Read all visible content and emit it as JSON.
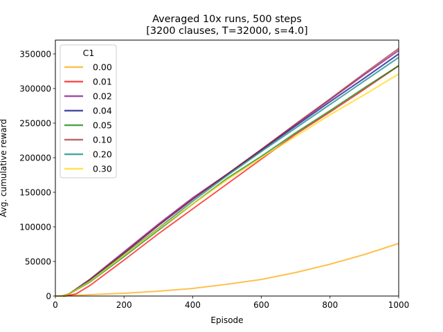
{
  "chart_data": {
    "type": "line",
    "title": "Averaged 10x runs, 500 steps",
    "subtitle": "[3200 clauses, T=32000, s=4.0]",
    "xlabel": "Episode",
    "ylabel": "Avg. cumulative reward",
    "xlim": [
      0,
      1000
    ],
    "ylim": [
      0,
      370000
    ],
    "x_ticks": [
      0,
      200,
      400,
      600,
      800,
      1000
    ],
    "y_ticks": [
      0,
      50000,
      100000,
      150000,
      200000,
      250000,
      300000,
      350000
    ],
    "grid": false,
    "legend": {
      "title": "C1",
      "placement": "upper left"
    },
    "series": [
      {
        "name": "0.00",
        "color": "#FFA500",
        "x": [
          0,
          100,
          200,
          300,
          400,
          500,
          600,
          700,
          800,
          900,
          1000
        ],
        "y": [
          0,
          2000,
          4000,
          7000,
          11000,
          17000,
          24000,
          34000,
          46000,
          60000,
          76000
        ]
      },
      {
        "name": "0.01",
        "color": "#FF0000",
        "x": [
          0,
          30,
          60,
          100,
          200,
          300,
          400,
          500,
          600,
          700,
          800,
          900,
          1000
        ],
        "y": [
          0,
          0,
          3000,
          15000,
          52000,
          90000,
          126000,
          162000,
          198000,
          234000,
          266000,
          299000,
          333000
        ]
      },
      {
        "name": "0.02",
        "color": "#800080",
        "x": [
          0,
          20,
          40,
          100,
          200,
          300,
          400,
          500,
          600,
          700,
          800,
          900,
          1000
        ],
        "y": [
          0,
          0,
          3000,
          24000,
          64000,
          104000,
          142000,
          176000,
          212000,
          248000,
          284000,
          320000,
          355000
        ]
      },
      {
        "name": "0.04",
        "color": "#000080",
        "x": [
          0,
          20,
          40,
          100,
          200,
          300,
          400,
          500,
          600,
          700,
          800,
          900,
          1000
        ],
        "y": [
          0,
          0,
          3000,
          23000,
          62000,
          102000,
          140000,
          176000,
          211000,
          246000,
          281000,
          315000,
          350000
        ]
      },
      {
        "name": "0.05",
        "color": "#008000",
        "x": [
          0,
          20,
          40,
          100,
          200,
          300,
          400,
          500,
          600,
          700,
          800,
          900,
          1000
        ],
        "y": [
          0,
          0,
          3000,
          20000,
          57000,
          95000,
          133000,
          170000,
          202000,
          236000,
          268000,
          301000,
          333000
        ]
      },
      {
        "name": "0.10",
        "color": "#A52A2A",
        "x": [
          0,
          20,
          40,
          100,
          200,
          300,
          400,
          500,
          600,
          700,
          800,
          900,
          1000
        ],
        "y": [
          0,
          0,
          3000,
          23000,
          62000,
          102000,
          140000,
          176000,
          212000,
          249000,
          285000,
          322000,
          358000
        ]
      },
      {
        "name": "0.20",
        "color": "#008080",
        "x": [
          0,
          20,
          40,
          100,
          200,
          300,
          400,
          500,
          600,
          700,
          800,
          900,
          1000
        ],
        "y": [
          0,
          0,
          3000,
          22000,
          60000,
          98000,
          137000,
          174000,
          209000,
          243000,
          277000,
          311000,
          345000
        ]
      },
      {
        "name": "0.30",
        "color": "#FFD700",
        "x": [
          0,
          20,
          40,
          100,
          200,
          300,
          400,
          500,
          600,
          700,
          800,
          900,
          1000
        ],
        "y": [
          0,
          0,
          3000,
          21000,
          59000,
          97000,
          133000,
          168000,
          200000,
          231000,
          262000,
          291000,
          321000
        ]
      }
    ]
  }
}
